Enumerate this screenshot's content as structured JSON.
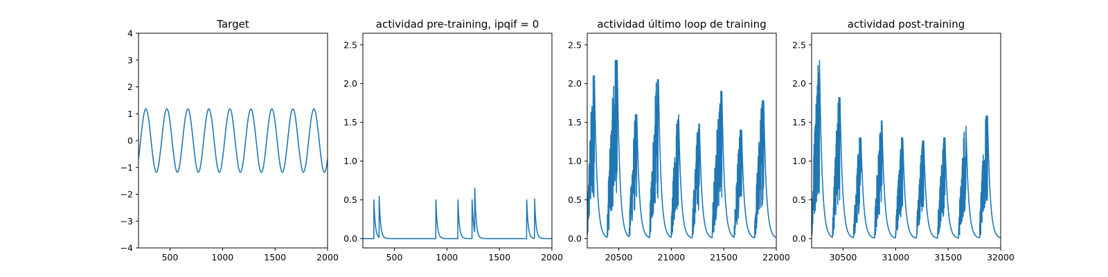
{
  "figure": {
    "line_color": "#1f77b4",
    "panel_count": 4
  },
  "chart_data": [
    {
      "type": "line",
      "title": "Target",
      "xlabel": "",
      "ylabel": "",
      "xlim": [
        200,
        2000
      ],
      "ylim": [
        -4,
        4
      ],
      "xticks": [
        500,
        1000,
        1500,
        2000
      ],
      "yticks": [
        -4,
        -3,
        -2,
        -1,
        0,
        1,
        2,
        3,
        4
      ],
      "ytick_labels": [
        "−4",
        "−3",
        "−2",
        "−1",
        "0",
        "1",
        "2",
        "3",
        "4"
      ],
      "grid": false,
      "signal": {
        "form": "sine",
        "amplitude": 1.18,
        "period": 200,
        "phase_x": 220
      }
    },
    {
      "type": "line",
      "title": "actividad pre-training, ipqif = 0",
      "xlabel": "",
      "ylabel": "",
      "xlim": [
        200,
        2000
      ],
      "ylim": [
        -0.12,
        2.65
      ],
      "xticks": [
        500,
        1000,
        1500,
        2000
      ],
      "yticks": [
        0.0,
        0.5,
        1.0,
        1.5,
        2.0,
        2.5
      ],
      "ytick_labels": [
        "0.0",
        "0.5",
        "1.0",
        "1.5",
        "2.0",
        "2.5"
      ],
      "grid": false,
      "signal": {
        "form": "spikes",
        "decay": 14,
        "spikes": [
          [
            305,
            0.5
          ],
          [
            355,
            0.53
          ],
          [
            895,
            0.5
          ],
          [
            1105,
            0.5
          ],
          [
            1240,
            0.5
          ],
          [
            1265,
            0.57
          ],
          [
            1760,
            0.5
          ],
          [
            1835,
            0.51
          ]
        ]
      }
    },
    {
      "type": "line",
      "title": "actividad último loop de training",
      "xlabel": "",
      "ylabel": "",
      "xlim": [
        20200,
        22000
      ],
      "ylim": [
        -0.12,
        2.65
      ],
      "xticks": [
        20500,
        21000,
        21500,
        22000
      ],
      "yticks": [
        0.0,
        0.5,
        1.0,
        1.5,
        2.0,
        2.5
      ],
      "ytick_labels": [
        "0.0",
        "0.5",
        "1.0",
        "1.5",
        "2.0",
        "2.5"
      ],
      "grid": false,
      "signal": {
        "form": "bursts",
        "decay": 25,
        "bursts": [
          [
            20200,
            20268,
            2.1
          ],
          [
            20390,
            20485,
            2.3
          ],
          [
            20600,
            20672,
            1.6
          ],
          [
            20795,
            20878,
            2.05
          ],
          [
            21000,
            21070,
            1.6
          ],
          [
            21200,
            21268,
            1.48
          ],
          [
            21390,
            21482,
            1.9
          ],
          [
            21600,
            21670,
            1.4
          ],
          [
            21795,
            21880,
            1.78
          ]
        ]
      }
    },
    {
      "type": "line",
      "title": "actividad post-training",
      "xlabel": "",
      "ylabel": "",
      "xlim": [
        30200,
        32000
      ],
      "ylim": [
        -0.12,
        2.65
      ],
      "xticks": [
        30500,
        31000,
        31500,
        32000
      ],
      "yticks": [
        0.0,
        0.5,
        1.0,
        1.5,
        2.0,
        2.5
      ],
      "ytick_labels": [
        "0.0",
        "0.5",
        "1.0",
        "1.5",
        "2.0",
        "2.5"
      ],
      "grid": false,
      "signal": {
        "form": "bursts",
        "decay": 25,
        "bursts": [
          [
            30200,
            30275,
            2.3
          ],
          [
            30400,
            30470,
            1.82
          ],
          [
            30600,
            30670,
            1.3
          ],
          [
            30800,
            30870,
            1.52
          ],
          [
            31000,
            31068,
            1.3
          ],
          [
            31200,
            31268,
            1.26
          ],
          [
            31400,
            31470,
            1.3
          ],
          [
            31600,
            31670,
            1.45
          ],
          [
            31800,
            31875,
            1.58
          ]
        ]
      }
    }
  ]
}
